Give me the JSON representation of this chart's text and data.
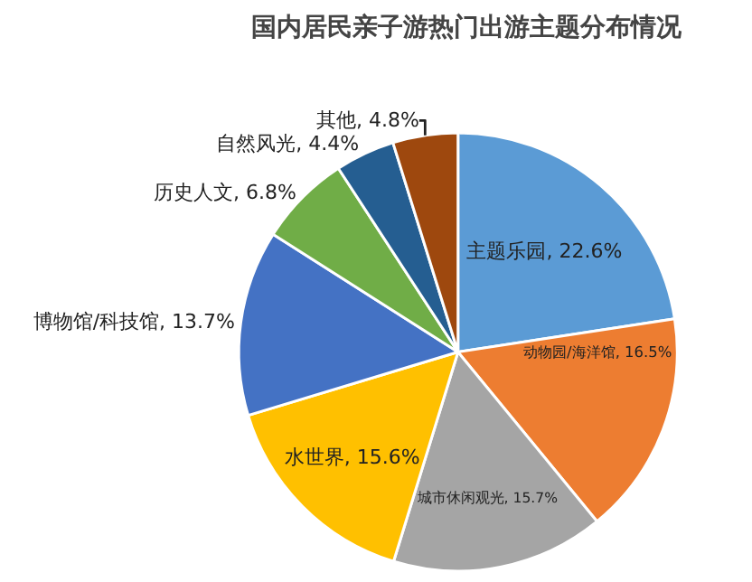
{
  "chart_data": {
    "type": "pie",
    "title": "国内居民亲子游热门出游主题分布情况",
    "categories": [
      "主题乐园",
      "动物园/海洋馆",
      "城市休闲观光",
      "水世界",
      "博物馆/科技馆",
      "历史人文",
      "自然风光",
      "其他"
    ],
    "values": [
      22.6,
      16.5,
      15.7,
      15.6,
      13.7,
      6.8,
      4.4,
      4.8
    ],
    "value_labels": [
      "22.6%",
      "16.5%",
      "15.7%",
      "15.6%",
      "13.7%",
      "6.8%",
      "4.4%",
      "4.8%"
    ],
    "colors": [
      "#5b9bd5",
      "#ed7d31",
      "#a5a5a5",
      "#ffc000",
      "#4472c4",
      "#70ad47",
      "#255e91",
      "#9e480e"
    ],
    "legend": false
  }
}
